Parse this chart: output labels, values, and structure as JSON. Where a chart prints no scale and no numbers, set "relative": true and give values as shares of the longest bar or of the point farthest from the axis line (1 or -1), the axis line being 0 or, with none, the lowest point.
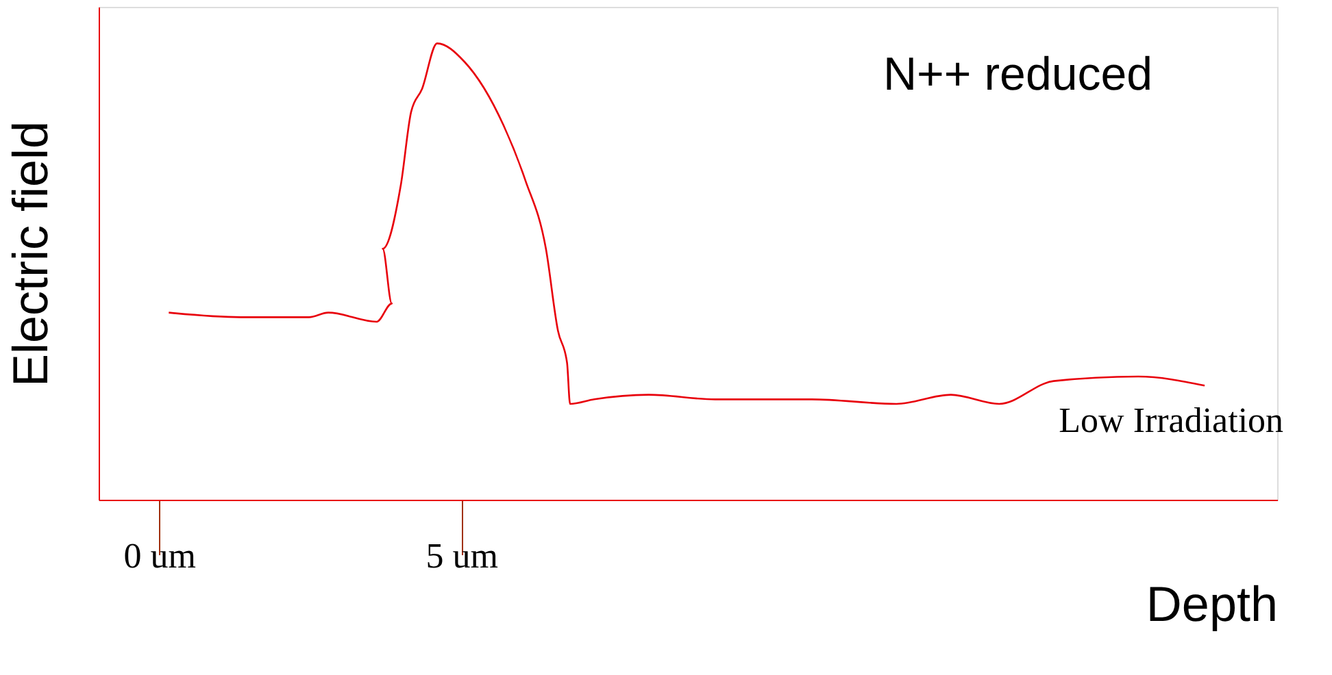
{
  "chart_data": {
    "type": "line",
    "relative": true,
    "xlabel": "Depth",
    "ylabel": "Electric field",
    "annotations": [
      "N++ reduced",
      "Low Irradiation"
    ],
    "xlim": [
      -1,
      18.5
    ],
    "xticks": [
      {
        "value": 0,
        "label": "0 um"
      },
      {
        "value": 5,
        "label": "5 um"
      }
    ],
    "grid": false,
    "marker": "none",
    "line_style": "solid",
    "x": [
      0.16,
      1.35,
      2.48,
      2.8,
      3.6,
      3.85,
      3.7,
      4.0,
      4.17,
      4.35,
      4.6,
      5.05,
      5.7,
      6.06,
      6.4,
      6.6,
      6.75,
      6.8,
      7.2,
      8.1,
      9.2,
      10.8,
      12.2,
      13.1,
      13.9,
      14.8,
      16.2,
      17.3
    ],
    "series": [
      {
        "color": "#e8000b",
        "values": [
          0.41,
          0.4,
          0.4,
          0.41,
          0.39,
          0.43,
          0.55,
          0.69,
          0.85,
          0.9,
          1.0,
          0.96,
          0.82,
          0.7,
          0.55,
          0.37,
          0.3,
          0.21,
          0.22,
          0.23,
          0.22,
          0.22,
          0.21,
          0.23,
          0.21,
          0.26,
          0.27,
          0.25
        ]
      }
    ]
  }
}
